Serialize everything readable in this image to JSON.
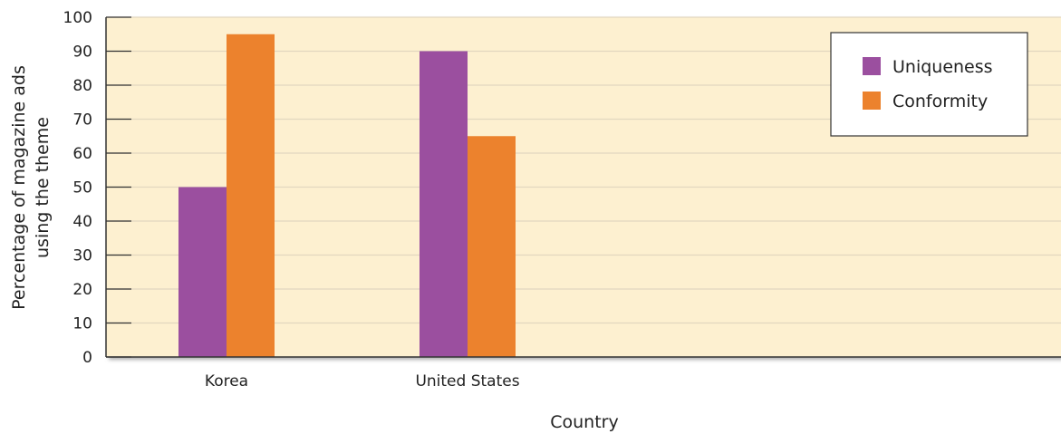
{
  "chart_data": {
    "type": "bar",
    "categories": [
      "Korea",
      "United States"
    ],
    "series": [
      {
        "name": "Uniqueness",
        "values": [
          50,
          90
        ],
        "color": "#9b4f9f"
      },
      {
        "name": "Conformity",
        "values": [
          95,
          65
        ],
        "color": "#ec822d"
      }
    ],
    "xlabel": "Country",
    "ylabel_lines": [
      "Percentage of magazine ads",
      "using the theme"
    ],
    "ylim": [
      0,
      100
    ],
    "yticks": [
      "0",
      "10",
      "20",
      "30",
      "40",
      "50",
      "60",
      "70",
      "80",
      "90",
      "100"
    ],
    "grid": true,
    "legend_position": "top-right",
    "plot_background": "#fdf0d0",
    "gridline_color": "#e2d7bf"
  }
}
